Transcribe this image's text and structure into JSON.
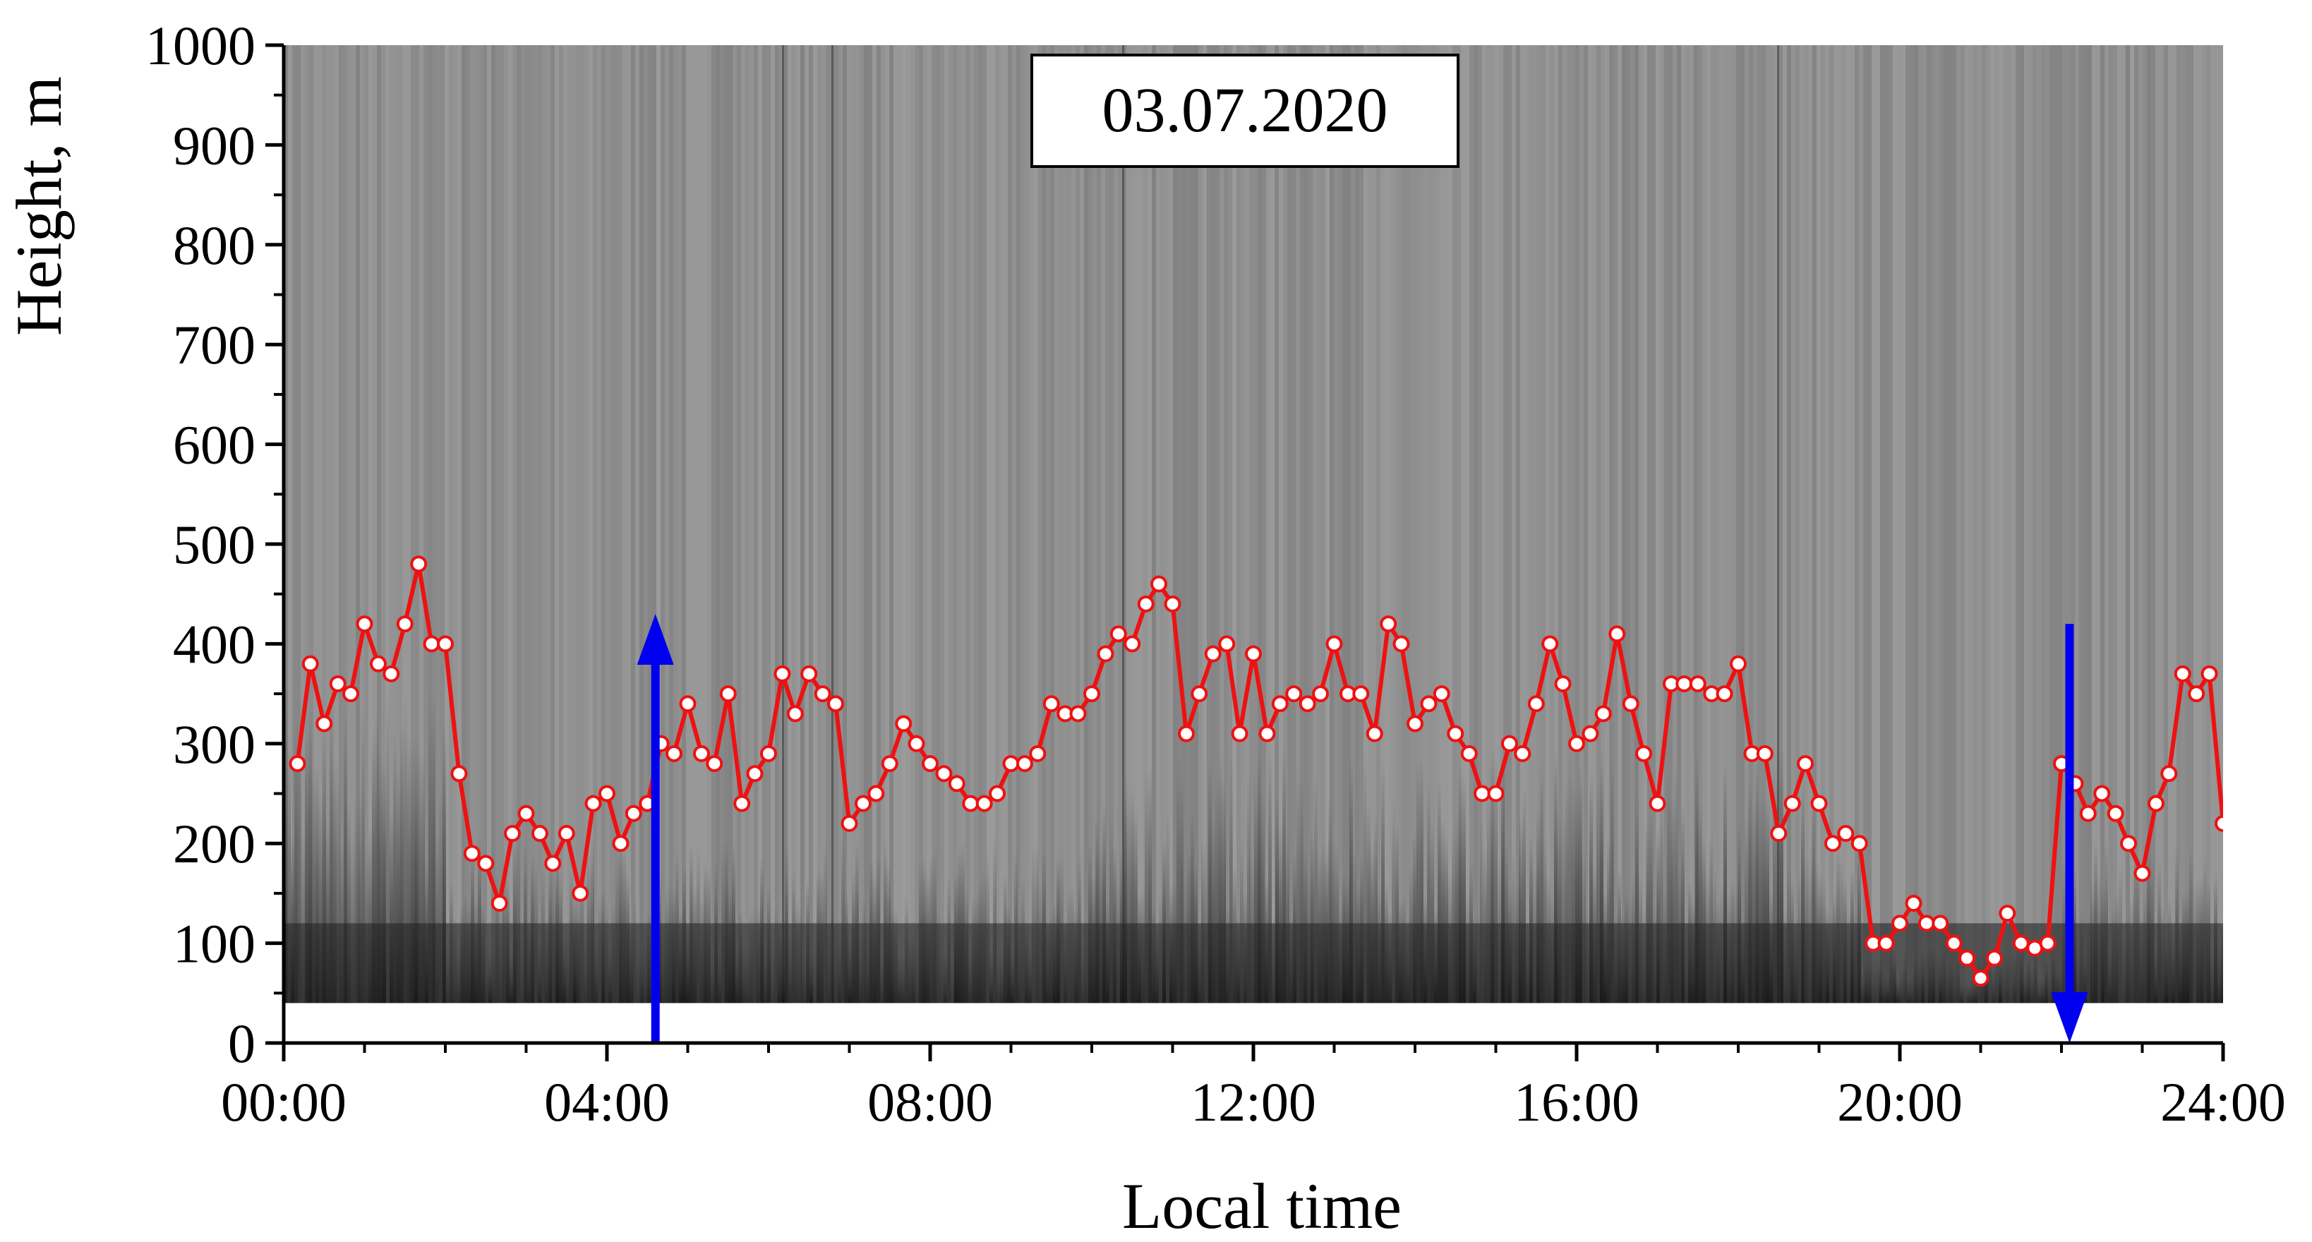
{
  "chart_data": {
    "type": "line",
    "background": "sodar echogram (grayscale)",
    "date_label": "03.07.2020",
    "xlabel": "Local time",
    "ylabel": "Height, m",
    "xlim": [
      0,
      24
    ],
    "ylim": [
      0,
      1000
    ],
    "x_ticks": [
      {
        "value": 0,
        "label": "00:00"
      },
      {
        "value": 4,
        "label": "04:00"
      },
      {
        "value": 8,
        "label": "08:00"
      },
      {
        "value": 12,
        "label": "12:00"
      },
      {
        "value": 16,
        "label": "16:00"
      },
      {
        "value": 20,
        "label": "20:00"
      },
      {
        "value": 24,
        "label": "24:00"
      }
    ],
    "y_ticks": [
      {
        "value": 0,
        "label": "0"
      },
      {
        "value": 100,
        "label": "100"
      },
      {
        "value": 200,
        "label": "200"
      },
      {
        "value": 300,
        "label": "300"
      },
      {
        "value": 400,
        "label": "400"
      },
      {
        "value": 500,
        "label": "500"
      },
      {
        "value": 600,
        "label": "600"
      },
      {
        "value": 700,
        "label": "700"
      },
      {
        "value": 800,
        "label": "800"
      },
      {
        "value": 900,
        "label": "900"
      },
      {
        "value": 1000,
        "label": "1000"
      }
    ],
    "grid": false,
    "series": [
      {
        "color": "#ee1111",
        "marker": "open-circle",
        "x": [
          0.17,
          0.33,
          0.5,
          0.67,
          0.83,
          1.0,
          1.17,
          1.33,
          1.5,
          1.67,
          1.83,
          2.0,
          2.17,
          2.33,
          2.5,
          2.67,
          2.83,
          3.0,
          3.17,
          3.33,
          3.5,
          3.67,
          3.83,
          4.0,
          4.17,
          4.33,
          4.5,
          4.67,
          4.83,
          5.0,
          5.17,
          5.33,
          5.5,
          5.67,
          5.83,
          6.0,
          6.17,
          6.33,
          6.5,
          6.67,
          6.83,
          7.0,
          7.17,
          7.33,
          7.5,
          7.67,
          7.83,
          8.0,
          8.17,
          8.33,
          8.5,
          8.67,
          8.83,
          9.0,
          9.17,
          9.33,
          9.5,
          9.67,
          9.83,
          10.0,
          10.17,
          10.33,
          10.5,
          10.67,
          10.83,
          11.0,
          11.17,
          11.33,
          11.5,
          11.67,
          11.83,
          12.0,
          12.17,
          12.33,
          12.5,
          12.67,
          12.83,
          13.0,
          13.17,
          13.33,
          13.5,
          13.67,
          13.83,
          14.0,
          14.17,
          14.33,
          14.5,
          14.67,
          14.83,
          15.0,
          15.17,
          15.33,
          15.5,
          15.67,
          15.83,
          16.0,
          16.17,
          16.33,
          16.5,
          16.67,
          16.83,
          17.0,
          17.17,
          17.33,
          17.5,
          17.67,
          17.83,
          18.0,
          18.17,
          18.33,
          18.5,
          18.67,
          18.83,
          19.0,
          19.17,
          19.33,
          19.5,
          19.67,
          19.83,
          20.0,
          20.17,
          20.33,
          20.5,
          20.67,
          20.83,
          21.0,
          21.17,
          21.33,
          21.5,
          21.67,
          21.83,
          22.0,
          22.17,
          22.33,
          22.5,
          22.67,
          22.83,
          23.0,
          23.17,
          23.33,
          23.5,
          23.67,
          23.83,
          24.0
        ],
        "y": [
          280,
          380,
          320,
          360,
          350,
          420,
          380,
          370,
          420,
          480,
          400,
          400,
          270,
          190,
          180,
          140,
          210,
          230,
          210,
          180,
          210,
          150,
          240,
          250,
          200,
          230,
          240,
          300,
          290,
          340,
          290,
          280,
          350,
          240,
          270,
          290,
          370,
          330,
          370,
          350,
          340,
          220,
          240,
          250,
          280,
          320,
          300,
          280,
          270,
          260,
          240,
          240,
          250,
          280,
          280,
          290,
          340,
          330,
          330,
          350,
          390,
          410,
          400,
          440,
          460,
          440,
          310,
          350,
          390,
          400,
          310,
          390,
          310,
          340,
          350,
          340,
          350,
          400,
          350,
          350,
          310,
          420,
          400,
          320,
          340,
          350,
          310,
          290,
          250,
          250,
          300,
          290,
          340,
          400,
          360,
          300,
          310,
          330,
          410,
          340,
          290,
          240,
          360,
          360,
          360,
          350,
          350,
          380,
          290,
          290,
          210,
          240,
          280,
          240,
          200,
          210,
          200,
          100,
          100,
          120,
          140,
          120,
          120,
          100,
          85,
          65,
          85,
          130,
          100,
          95,
          100,
          280,
          260,
          230,
          250,
          230,
          200,
          170,
          240,
          270,
          370,
          350,
          370,
          220
        ]
      }
    ],
    "arrows": [
      {
        "x": 4.6,
        "from": 0,
        "to": 430,
        "direction": "up",
        "color": "#0000ee"
      },
      {
        "x": 22.1,
        "from": 420,
        "to": 0,
        "direction": "down",
        "color": "#0000ee"
      }
    ],
    "colors": {
      "line": "#ee1111",
      "marker_fill": "#ffffff",
      "arrow": "#0000ee",
      "echogram_background": "#8e8e8e"
    }
  }
}
